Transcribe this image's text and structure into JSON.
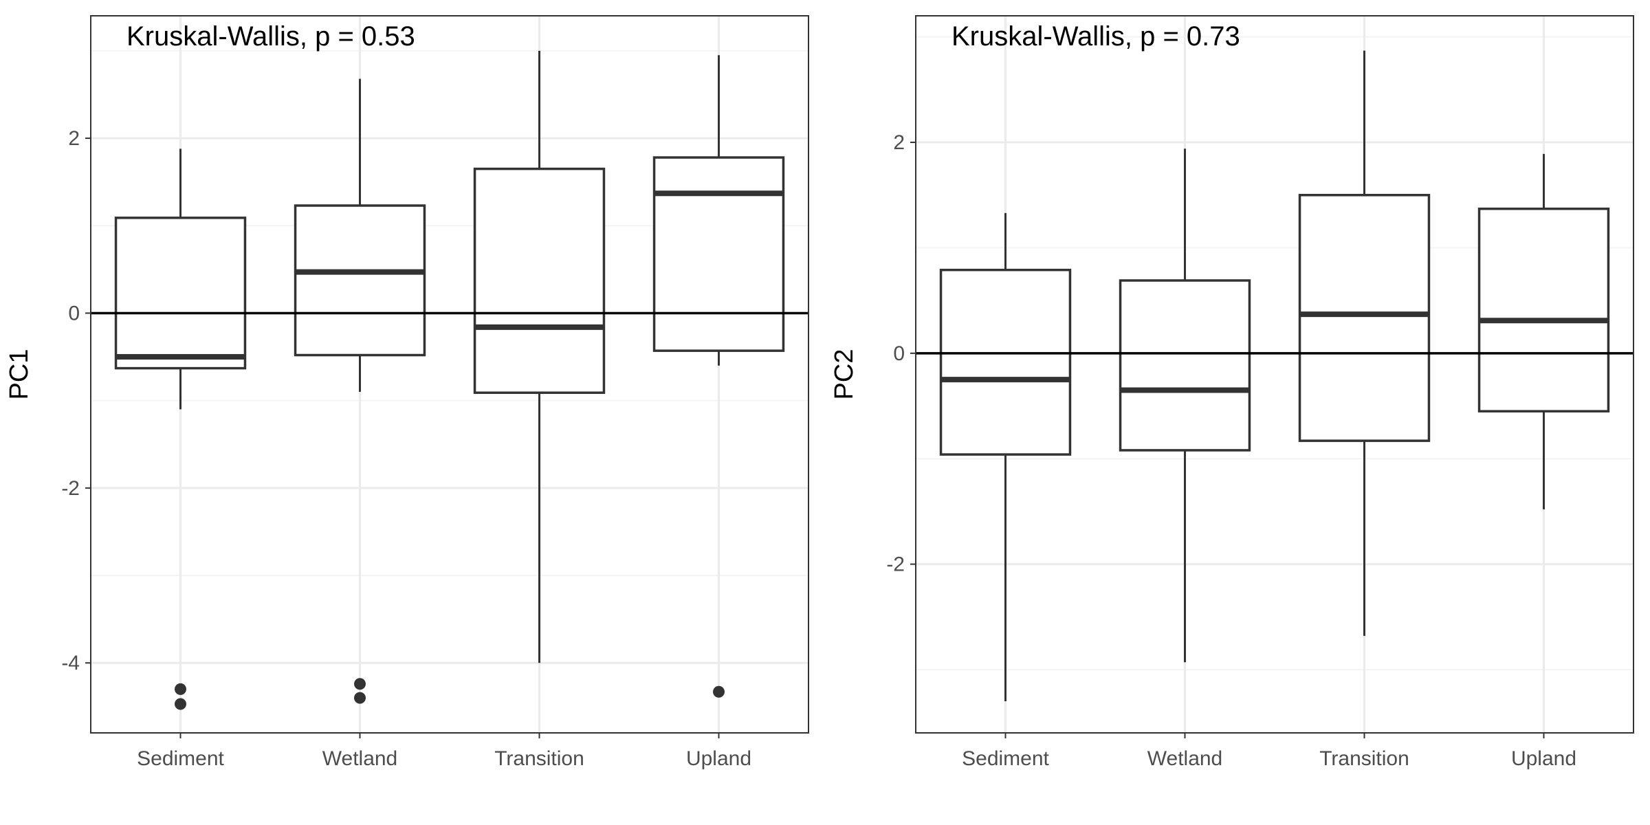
{
  "chart_data": [
    {
      "type": "boxplot",
      "ylabel": "PC1",
      "xlabel": "",
      "categories": [
        "Sediment",
        "Wetland",
        "Transition",
        "Upland"
      ],
      "ylim": [
        -4.8,
        3.4
      ],
      "yticks": [
        -4,
        -2,
        0,
        2
      ],
      "grid": true,
      "reference_line_y": 0,
      "annotation": "Kruskal-Wallis, p = 0.53",
      "boxes": [
        {
          "category": "Sediment",
          "whisker_low": -1.1,
          "q1": -0.63,
          "median": -0.5,
          "q3": 1.09,
          "whisker_high": 1.88,
          "outliers": [
            -4.3,
            -4.47
          ]
        },
        {
          "category": "Wetland",
          "whisker_low": -0.9,
          "q1": -0.48,
          "median": 0.47,
          "q3": 1.23,
          "whisker_high": 2.68,
          "outliers": [
            -4.24,
            -4.4
          ]
        },
        {
          "category": "Transition",
          "whisker_low": -4.0,
          "q1": -0.91,
          "median": -0.16,
          "q3": 1.65,
          "whisker_high": 3.0,
          "outliers": []
        },
        {
          "category": "Upland",
          "whisker_low": -0.6,
          "q1": -0.43,
          "median": 1.37,
          "q3": 1.78,
          "whisker_high": 2.95,
          "outliers": [
            -4.33
          ]
        }
      ]
    },
    {
      "type": "boxplot",
      "ylabel": "PC2",
      "xlabel": "",
      "categories": [
        "Sediment",
        "Wetland",
        "Transition",
        "Upland"
      ],
      "ylim": [
        -3.6,
        3.2
      ],
      "yticks": [
        -2,
        0,
        2
      ],
      "grid": true,
      "reference_line_y": 0,
      "annotation": "Kruskal-Wallis, p = 0.73",
      "boxes": [
        {
          "category": "Sediment",
          "whisker_low": -3.3,
          "q1": -0.96,
          "median": -0.25,
          "q3": 0.79,
          "whisker_high": 1.33,
          "outliers": []
        },
        {
          "category": "Wetland",
          "whisker_low": -2.93,
          "q1": -0.92,
          "median": -0.35,
          "q3": 0.69,
          "whisker_high": 1.94,
          "outliers": []
        },
        {
          "category": "Transition",
          "whisker_low": -2.68,
          "q1": -0.83,
          "median": 0.37,
          "q3": 1.5,
          "whisker_high": 2.87,
          "outliers": []
        },
        {
          "category": "Upland",
          "whisker_low": -1.48,
          "q1": -0.55,
          "median": 0.31,
          "q3": 1.37,
          "whisker_high": 1.89,
          "outliers": []
        }
      ]
    }
  ]
}
